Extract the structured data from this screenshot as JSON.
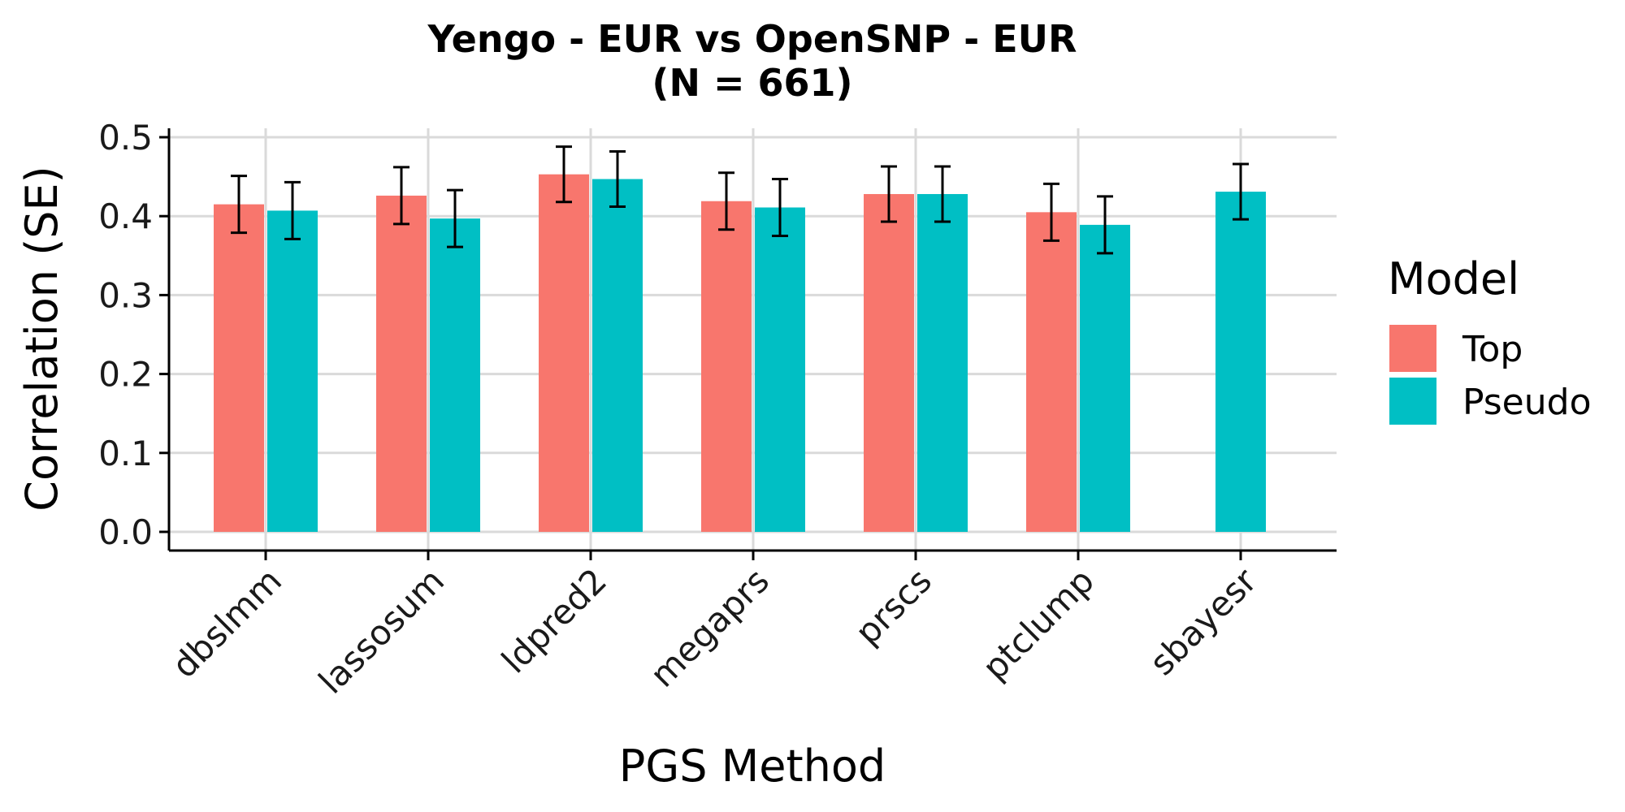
{
  "chart_data": {
    "type": "bar",
    "title": "Yengo - EUR vs OpenSNP - EUR",
    "subtitle": "(N = 661)",
    "xlabel": "PGS Method",
    "ylabel": "Correlation (SE)",
    "ylim": [
      0,
      0.5
    ],
    "yticks": [
      "0.0",
      "0.1",
      "0.2",
      "0.3",
      "0.4",
      "0.5"
    ],
    "categories": [
      "dbslmm",
      "lassosum",
      "ldpred2",
      "megaprs",
      "prscs",
      "ptclump",
      "sbayesr"
    ],
    "legend": {
      "title": "Model",
      "position": "right"
    },
    "grid": true,
    "series": [
      {
        "name": "Top",
        "color": "#F8766D",
        "values": [
          0.415,
          0.426,
          0.453,
          0.419,
          0.428,
          0.405,
          null
        ],
        "se": [
          0.036,
          0.036,
          0.035,
          0.036,
          0.035,
          0.036,
          null
        ]
      },
      {
        "name": "Pseudo",
        "color": "#00BFC4",
        "values": [
          0.407,
          0.397,
          0.447,
          0.411,
          0.428,
          0.389,
          0.431
        ],
        "se": [
          0.036,
          0.036,
          0.035,
          0.036,
          0.035,
          0.036,
          0.035
        ]
      }
    ]
  }
}
